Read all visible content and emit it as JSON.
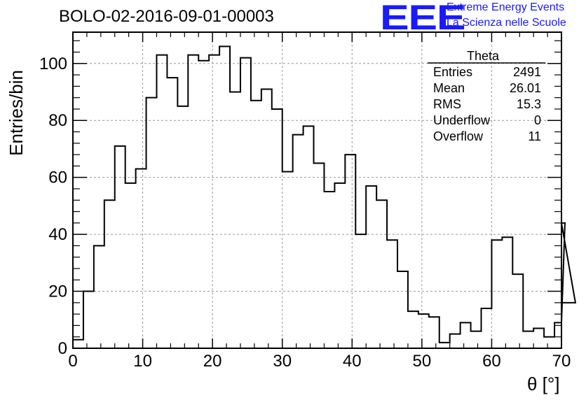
{
  "title": "BOLO-02-2016-09-01-00003",
  "logo": {
    "mark": "EEE",
    "line1": "Extreme Energy Events",
    "line2": "La Scienza nelle Scuole",
    "color": "#1a1aff"
  },
  "stats": {
    "name": "Theta",
    "rows": [
      {
        "label": "Entries",
        "value": "2491"
      },
      {
        "label": "Mean",
        "value": "26.01"
      },
      {
        "label": "RMS",
        "value": "15.3"
      },
      {
        "label": "Underflow",
        "value": "0"
      },
      {
        "label": "Overflow",
        "value": "11"
      }
    ]
  },
  "chart_data": {
    "type": "bar",
    "style": "step-histogram",
    "title": "BOLO-02-2016-09-01-00003",
    "xlabel": "θ [°]",
    "ylabel": "Entries/bin",
    "xlim": [
      0,
      70
    ],
    "ylim": [
      0,
      111
    ],
    "bin_width": 1.5,
    "bin_start": 0,
    "x_ticks": [
      0,
      10,
      20,
      30,
      40,
      50,
      60,
      70
    ],
    "x_tick_labels": [
      "0",
      "10",
      "20",
      "30",
      "40",
      "50",
      "60",
      "70"
    ],
    "y_ticks": [
      0,
      20,
      40,
      60,
      80,
      100
    ],
    "y_tick_labels": [
      "0",
      "20",
      "40",
      "60",
      "80",
      "100"
    ],
    "grid": true,
    "values": [
      3,
      20,
      36,
      52,
      71,
      58,
      63,
      88,
      103,
      95,
      85,
      103,
      101,
      103,
      106,
      90,
      102,
      87,
      91,
      84,
      62,
      75,
      78,
      65,
      55,
      58,
      68,
      40,
      57,
      52,
      38,
      27,
      13,
      12,
      11,
      2,
      5,
      9,
      6,
      14,
      38,
      39,
      26,
      6,
      7,
      4,
      9,
      44,
      16
    ],
    "line_color": "#000000"
  }
}
